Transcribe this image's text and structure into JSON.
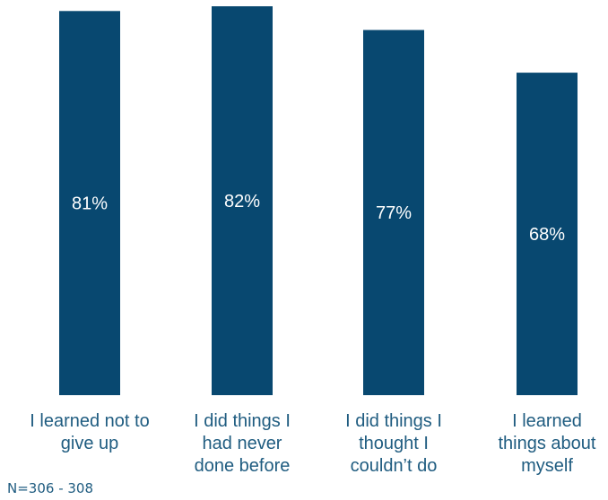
{
  "chart_data": {
    "type": "bar",
    "categories": [
      [
        "I learned not to",
        "give up"
      ],
      [
        "I did things I",
        "had never",
        "done before"
      ],
      [
        "I did things I",
        "thought I",
        "couldn’t do"
      ],
      [
        "I learned",
        "things about",
        "myself"
      ]
    ],
    "values": [
      81,
      82,
      77,
      68
    ],
    "value_labels": [
      "81%",
      "82%",
      "77%",
      "68%"
    ],
    "ylim": [
      0,
      82
    ],
    "bar_color": "#084870",
    "label_color": "#ffffff",
    "category_label_color": "#1f5c80",
    "grid": false,
    "legend": "none"
  },
  "footnote": "N=306 - 308"
}
